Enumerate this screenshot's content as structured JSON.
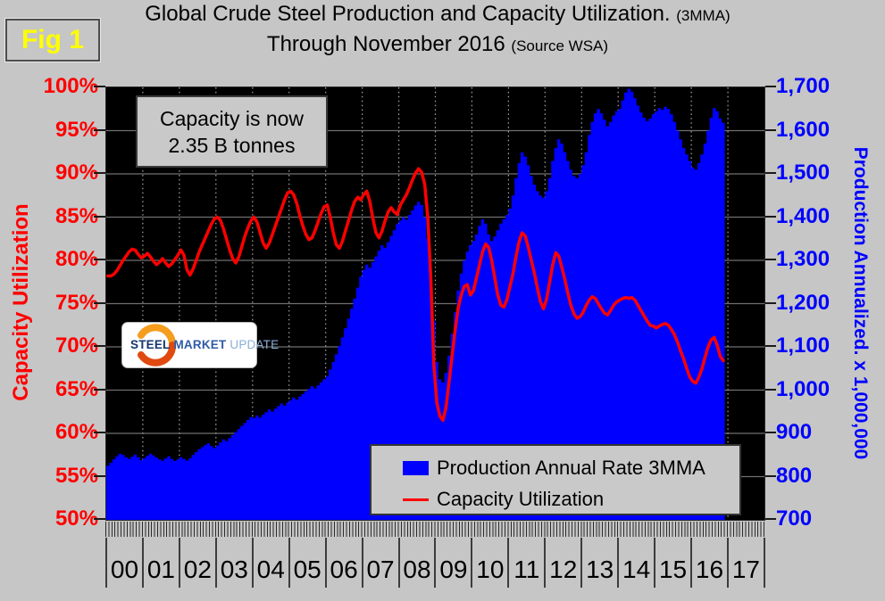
{
  "fig_label": "Fig 1",
  "title": {
    "line1": "Global Crude Steel Production and Capacity Utilization.",
    "line1_note": "(3MMA)",
    "line2": "Through November 2016",
    "line2_note": "(Source WSA)"
  },
  "annotation": {
    "line1": "Capacity is now",
    "line2": "2.35 B tonnes"
  },
  "logo": {
    "word1": "STEEL",
    "word2": "MARKET",
    "word3": "UPDATE"
  },
  "legend": {
    "items": [
      {
        "label": "Production Annual Rate 3MMA",
        "swatch": "area",
        "color": "#0000ff"
      },
      {
        "label": "Capacity Utilization",
        "swatch": "line",
        "color": "#ff0000"
      }
    ]
  },
  "colors": {
    "production": "#0000ff",
    "utilization": "#ff0000",
    "plot_background": "#000000",
    "page_background": "#c6c6c6",
    "fig_label": "#ffff00",
    "left_axis_text": "#ff0000",
    "right_axis_text": "#0000ff"
  },
  "chart_data": {
    "type": "combo",
    "subtype": [
      "area",
      "line"
    ],
    "period": "monthly",
    "start": "2000-01",
    "end": "2016-11",
    "grid": {
      "horizontal": "solid",
      "vertical": "dotted"
    },
    "legend_position": "bottom-center-inside",
    "left_axis": {
      "label": "Capacity Utilization",
      "min": 50,
      "max": 100,
      "step": 5,
      "unit": "%",
      "ticks": [
        "100%",
        "95%",
        "90%",
        "85%",
        "80%",
        "75%",
        "70%",
        "65%",
        "60%",
        "55%",
        "50%"
      ]
    },
    "right_axis": {
      "label": "Production Annualized. x 1,000,000",
      "min": 700,
      "max": 1700,
      "step": 100,
      "ticks": [
        "1,700",
        "1,600",
        "1,500",
        "1,400",
        "1,300",
        "1,200",
        "1,100",
        "1,000",
        "900",
        "800",
        "700"
      ]
    },
    "x_axis": {
      "years": [
        "00",
        "01",
        "02",
        "03",
        "04",
        "05",
        "06",
        "07",
        "08",
        "09",
        "10",
        "11",
        "12",
        "13",
        "14",
        "15",
        "16",
        "17"
      ]
    },
    "series": [
      {
        "name": "Production Annual Rate 3MMA",
        "type": "area",
        "axis": "right",
        "color": "#0000ff",
        "values": [
          825,
          832,
          840,
          847,
          853,
          850,
          845,
          841,
          846,
          851,
          845,
          838,
          843,
          848,
          853,
          849,
          844,
          840,
          837,
          842,
          847,
          841,
          836,
          840,
          845,
          841,
          837,
          842,
          850,
          857,
          863,
          868,
          873,
          877,
          871,
          866,
          872,
          879,
          886,
          882,
          889,
          896,
          903,
          910,
          917,
          924,
          931,
          938,
          935,
          941,
          936,
          943,
          949,
          955,
          950,
          957,
          963,
          969,
          964,
          971,
          977,
          983,
          978,
          985,
          991,
          997,
          1003,
          1009,
          1004,
          1011,
          1018,
          1025,
          1032,
          1048,
          1065,
          1083,
          1102,
          1122,
          1143,
          1165,
          1188,
          1212,
          1237,
          1262,
          1278,
          1290,
          1283,
          1296,
          1309,
          1322,
          1335,
          1329,
          1342,
          1356,
          1370,
          1384,
          1392,
          1400,
          1394,
          1405,
          1416,
          1427,
          1435,
          1428,
          1400,
          1350,
          1260,
          1160,
          1065,
          1025,
          1018,
          1040,
          1080,
          1130,
          1180,
          1230,
          1270,
          1300,
          1320,
          1335,
          1345,
          1360,
          1380,
          1395,
          1385,
          1360,
          1345,
          1355,
          1370,
          1385,
          1395,
          1405,
          1420,
          1450,
          1490,
          1525,
          1550,
          1540,
          1520,
          1495,
          1475,
          1460,
          1450,
          1445,
          1460,
          1490,
          1530,
          1560,
          1580,
          1570,
          1550,
          1530,
          1510,
          1495,
          1490,
          1500,
          1520,
          1550,
          1590,
          1620,
          1640,
          1650,
          1640,
          1625,
          1610,
          1620,
          1635,
          1645,
          1650,
          1670,
          1688,
          1697,
          1690,
          1675,
          1658,
          1642,
          1630,
          1622,
          1628,
          1638,
          1645,
          1652,
          1648,
          1655,
          1650,
          1638,
          1620,
          1600,
          1580,
          1560,
          1545,
          1530,
          1515,
          1510,
          1525,
          1545,
          1570,
          1600,
          1630,
          1652,
          1645,
          1628,
          1618
        ]
      },
      {
        "name": "Capacity Utilization",
        "type": "line",
        "axis": "left",
        "color": "#ff0000",
        "values": [
          78.2,
          78.2,
          78.4,
          78.8,
          79.4,
          80.0,
          80.5,
          81.0,
          81.3,
          81.2,
          80.7,
          80.3,
          80.5,
          80.8,
          80.4,
          79.9,
          79.5,
          79.8,
          80.2,
          79.7,
          79.3,
          79.6,
          80.1,
          80.6,
          81.2,
          80.6,
          78.9,
          78.3,
          79.0,
          80.0,
          81.0,
          81.8,
          82.6,
          83.4,
          84.2,
          84.8,
          85.0,
          84.6,
          83.6,
          82.4,
          81.2,
          80.2,
          79.7,
          80.4,
          81.6,
          82.8,
          83.8,
          84.6,
          85.0,
          84.4,
          83.2,
          82.0,
          81.4,
          82.0,
          83.0,
          84.0,
          85.0,
          86.0,
          87.0,
          87.8,
          88.0,
          87.6,
          86.6,
          85.2,
          84.0,
          83.0,
          82.4,
          82.6,
          83.4,
          84.4,
          85.4,
          86.2,
          86.4,
          85.0,
          83.2,
          81.8,
          81.4,
          82.2,
          83.4,
          84.6,
          85.8,
          86.8,
          87.3,
          87.0,
          87.6,
          88.0,
          86.8,
          84.8,
          83.2,
          82.6,
          83.4,
          84.6,
          85.6,
          86.1,
          85.6,
          85.3,
          86.4,
          87.0,
          87.6,
          88.4,
          89.3,
          90.1,
          90.6,
          90.2,
          88.8,
          85.0,
          78.0,
          68.0,
          63.5,
          62.0,
          61.5,
          63.0,
          66.0,
          69.0,
          72.0,
          74.5,
          76.0,
          77.0,
          77.2,
          76.0,
          76.5,
          78.0,
          79.5,
          81.0,
          81.9,
          81.5,
          80.0,
          78.0,
          76.0,
          74.8,
          74.6,
          75.5,
          77.0,
          78.5,
          80.5,
          82.2,
          83.2,
          82.8,
          81.5,
          80.0,
          78.5,
          76.8,
          75.2,
          74.4,
          75.5,
          77.5,
          79.5,
          80.9,
          80.5,
          79.2,
          77.8,
          76.2,
          74.8,
          73.8,
          73.3,
          73.5,
          74.0,
          74.8,
          75.4,
          75.8,
          75.6,
          75.0,
          74.4,
          73.9,
          73.7,
          74.2,
          74.8,
          75.2,
          75.4,
          75.6,
          75.7,
          75.6,
          75.7,
          75.4,
          74.8,
          74.2,
          73.6,
          73.0,
          72.5,
          72.4,
          72.2,
          72.4,
          72.6,
          72.7,
          72.5,
          72.0,
          71.4,
          70.5,
          69.5,
          68.6,
          67.5,
          66.5,
          66.0,
          65.8,
          66.5,
          67.5,
          68.8,
          70.0,
          70.8,
          71.1,
          70.2,
          68.9,
          68.4
        ]
      }
    ]
  }
}
